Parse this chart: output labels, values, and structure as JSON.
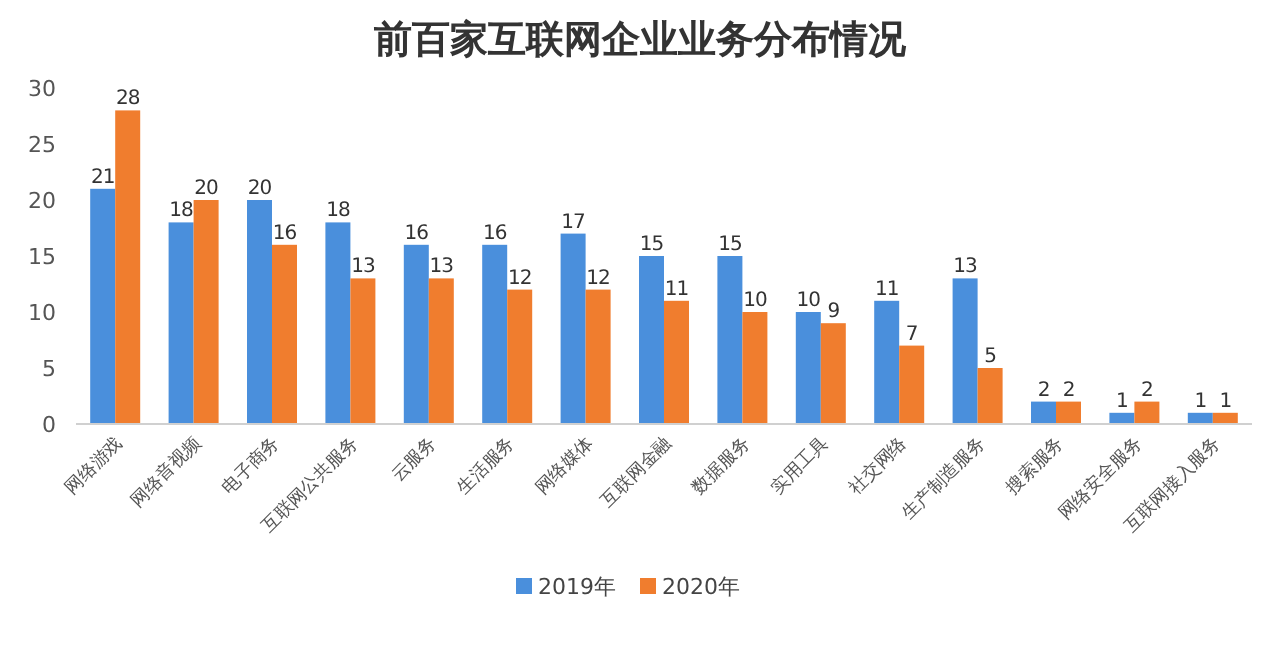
{
  "chart_data": {
    "type": "bar",
    "title": "前百家互联网企业业务分布情况",
    "categories": [
      "网络游戏",
      "网络音视频",
      "电子商务",
      "互联网公共服务",
      "云服务",
      "生活服务",
      "网络媒体",
      "互联网金融",
      "数据服务",
      "实用工具",
      "社交网络",
      "生产制造服务",
      "搜索服务",
      "网络安全服务",
      "互联网接入服务"
    ],
    "series": [
      {
        "name": "2019年",
        "color": "#4a8fdc",
        "values": [
          21,
          18,
          20,
          18,
          16,
          16,
          17,
          15,
          15,
          10,
          11,
          13,
          2,
          1,
          1
        ]
      },
      {
        "name": "2020年",
        "color": "#f07d2e",
        "values": [
          28,
          20,
          16,
          13,
          13,
          12,
          12,
          11,
          10,
          9,
          7,
          5,
          2,
          2,
          1
        ]
      }
    ],
    "ylim": [
      0,
      30
    ],
    "yticks": [
      0,
      5,
      10,
      15,
      20,
      25,
      30
    ],
    "data_labels": true,
    "grid": false,
    "legend": "bottom"
  }
}
